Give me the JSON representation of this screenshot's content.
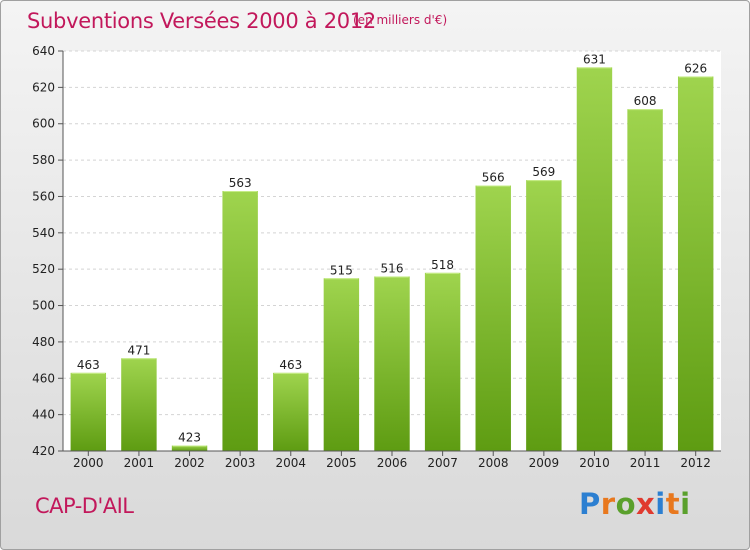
{
  "title": "Subventions Versées 2000 à 2012",
  "subtitle": "(en milliers d'€)",
  "commune": "CAP-D'AIL",
  "logo": {
    "text": "Proxiti",
    "letters": [
      {
        "ch": "P",
        "color": "#2c7fd1"
      },
      {
        "ch": "r",
        "color": "#e8781e"
      },
      {
        "ch": "o",
        "color": "#5aa02c"
      },
      {
        "ch": "x",
        "color": "#e03a2f"
      },
      {
        "ch": "i",
        "color": "#2c7fd1"
      },
      {
        "ch": "t",
        "color": "#e8781e"
      },
      {
        "ch": "i",
        "color": "#5aa02c"
      }
    ]
  },
  "colors": {
    "accent": "#c2185b",
    "bar_top": "#9fd44e",
    "bar_bottom": "#5e9c12"
  },
  "chart_data": {
    "type": "bar",
    "title": "Subventions Versées 2000 à 2012",
    "subtitle": "(en milliers d'€)",
    "xlabel": "",
    "ylabel": "",
    "categories": [
      "2000",
      "2001",
      "2002",
      "2003",
      "2004",
      "2005",
      "2006",
      "2007",
      "2008",
      "2009",
      "2010",
      "2011",
      "2012"
    ],
    "values": [
      463,
      471,
      423,
      563,
      463,
      515,
      516,
      518,
      566,
      569,
      631,
      608,
      626
    ],
    "ylim": [
      420,
      640
    ],
    "yticks": [
      420,
      440,
      460,
      480,
      500,
      520,
      540,
      560,
      580,
      600,
      620,
      640
    ],
    "grid": true,
    "legend": "none"
  }
}
